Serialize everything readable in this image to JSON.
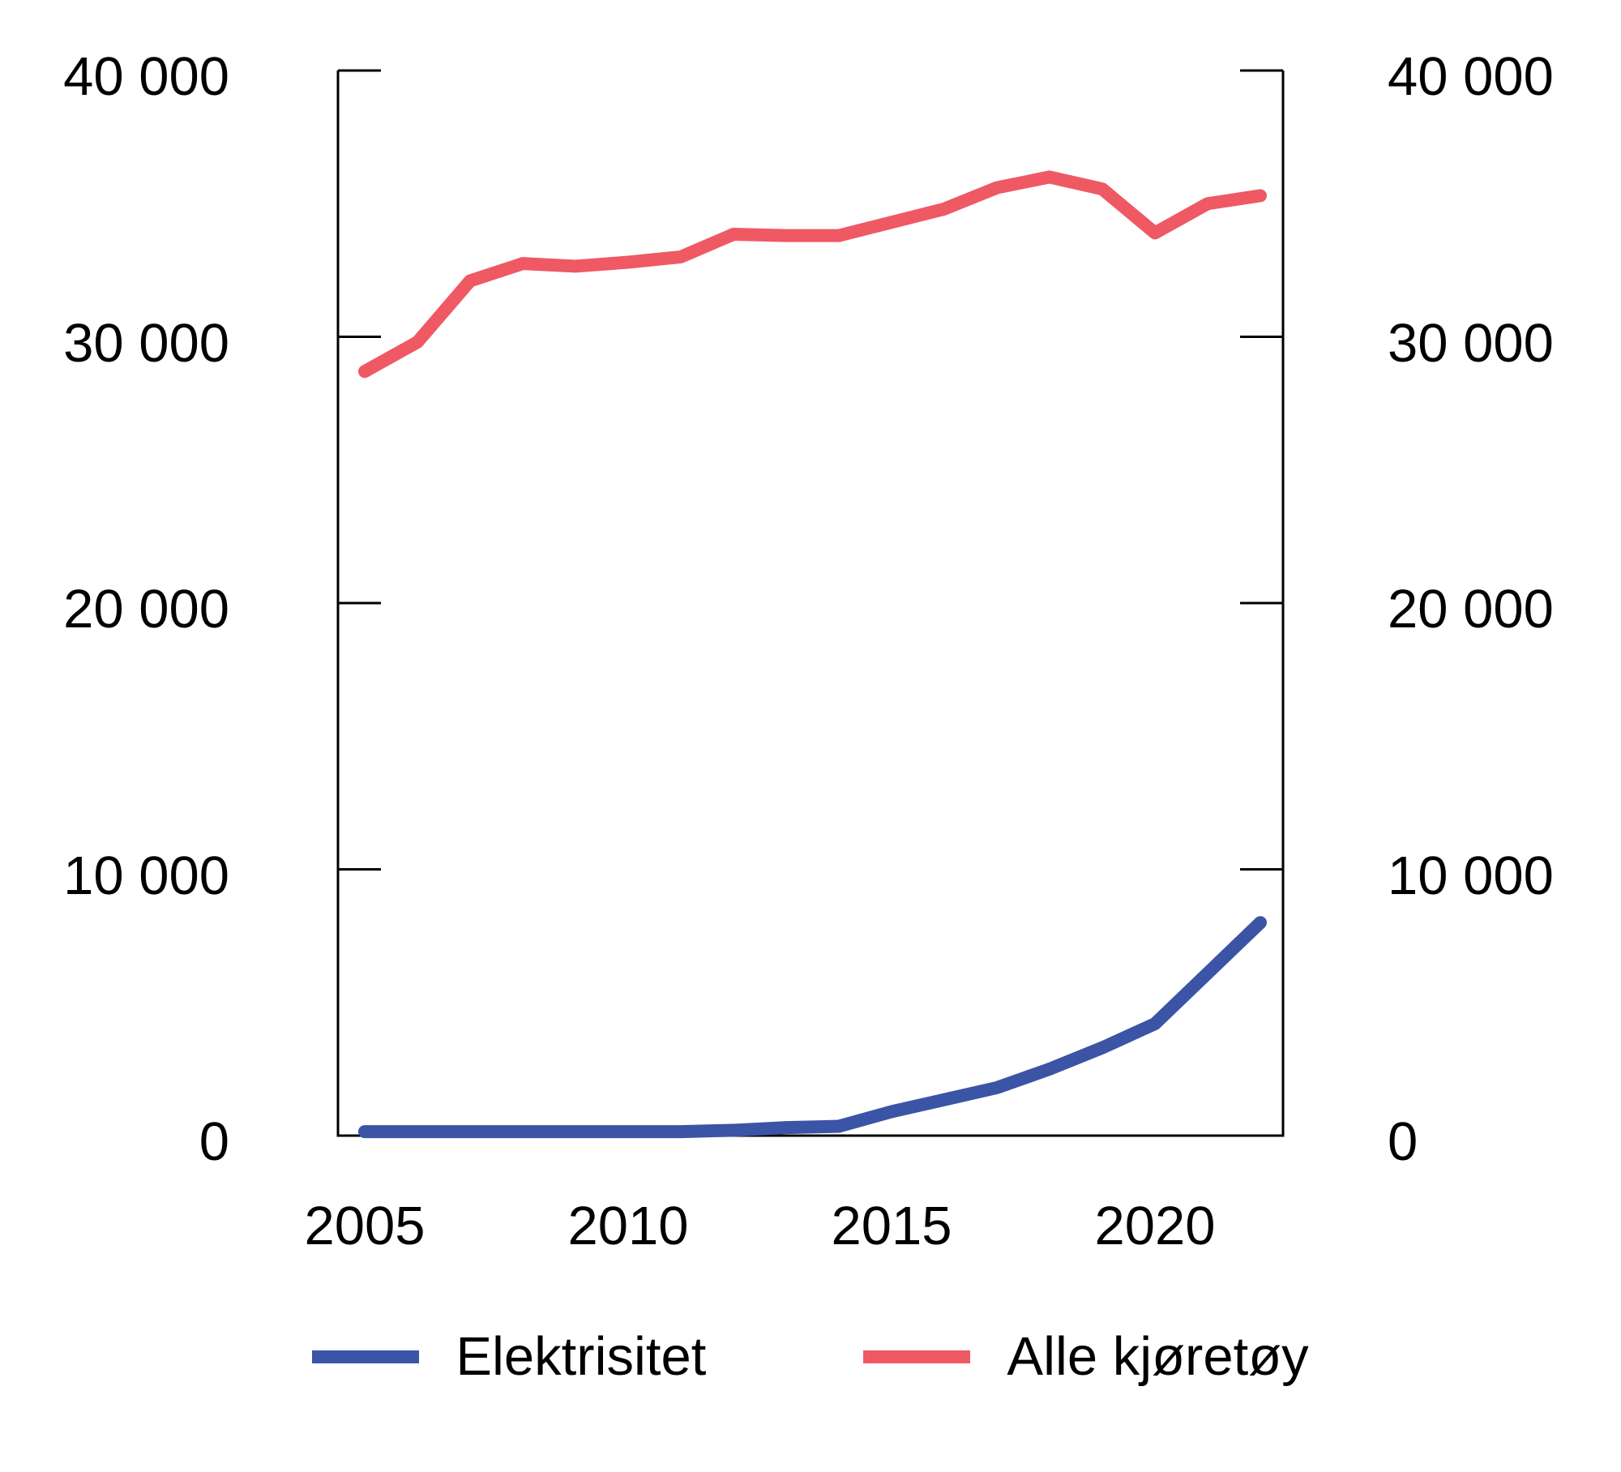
{
  "chart_data": {
    "type": "line",
    "title": "",
    "x": [
      2005,
      2006,
      2007,
      2008,
      2009,
      2010,
      2011,
      2012,
      2013,
      2014,
      2015,
      2016,
      2017,
      2018,
      2019,
      2020,
      2021,
      2022
    ],
    "series": [
      {
        "name": "Elektrisitet",
        "color": "#3b54a5",
        "values": [
          150,
          150,
          150,
          150,
          150,
          150,
          150,
          200,
          300,
          350,
          900,
          1350,
          1800,
          2500,
          3300,
          4200,
          6100,
          8000
        ]
      },
      {
        "name": "Alle kjøretøy",
        "color": "#ef5963",
        "values": [
          28700,
          29800,
          32100,
          32750,
          32650,
          32800,
          33000,
          33850,
          33800,
          33800,
          34300,
          34800,
          35600,
          36000,
          35550,
          33900,
          35000,
          35300
        ]
      }
    ],
    "xlabel": "",
    "ylabel": "",
    "ylim": [
      0,
      40000
    ],
    "yticks": [
      0,
      10000,
      20000,
      30000,
      40000
    ],
    "ytick_labels": [
      "0",
      "10 000",
      "20 000",
      "30 000",
      "40 000"
    ],
    "xticks": [
      2005,
      2010,
      2015,
      2020
    ],
    "xtick_labels": [
      "2005",
      "2010",
      "2015",
      "2020"
    ],
    "grid": false,
    "dual_axis": true,
    "legend_position": "bottom",
    "axis_color": "#000000",
    "tick_style": "inward"
  },
  "axes": {
    "left_labels": [
      "40 000",
      "30 000",
      "20 000",
      "10 000",
      "0"
    ],
    "left_values": [
      40000,
      30000,
      20000,
      10000,
      0
    ],
    "right_labels": [
      "40 000",
      "30 000",
      "20 000",
      "10 000",
      "0"
    ],
    "right_values": [
      40000,
      30000,
      20000,
      10000,
      0
    ],
    "x_labels": [
      "2005",
      "2010",
      "2015",
      "2020"
    ],
    "x_values": [
      2005,
      2010,
      2015,
      2020
    ]
  },
  "legend": {
    "items": [
      {
        "label": "Elektrisitet",
        "color": "#3b54a5"
      },
      {
        "label": "Alle kjøretøy",
        "color": "#ef5963"
      }
    ]
  }
}
